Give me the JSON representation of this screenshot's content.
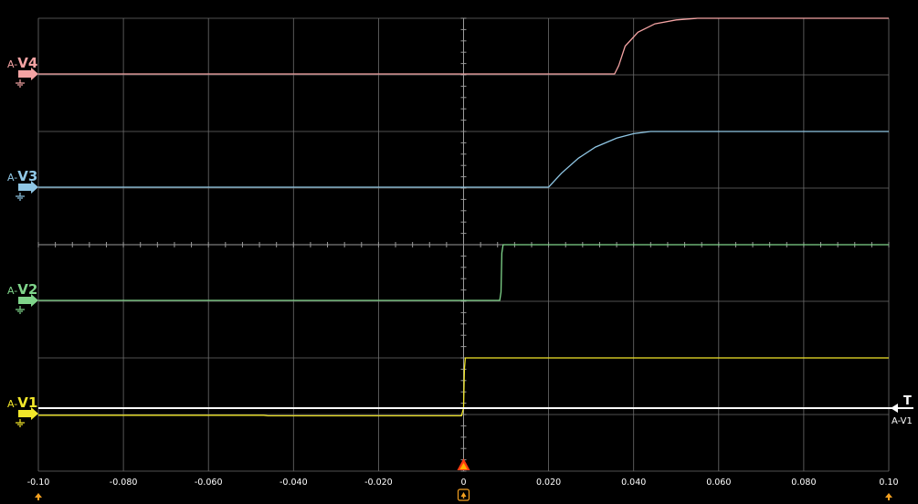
{
  "chart_data": {
    "type": "line",
    "xlim": [
      -0.1,
      0.1
    ],
    "x_ticks": [
      {
        "v": -0.1,
        "label": "-0.10"
      },
      {
        "v": -0.08,
        "label": "-0.080"
      },
      {
        "v": -0.06,
        "label": "-0.060"
      },
      {
        "v": -0.04,
        "label": "-0.040"
      },
      {
        "v": -0.02,
        "label": "-0.020"
      },
      {
        "v": 0,
        "label": "0"
      },
      {
        "v": 0.02,
        "label": "0.020"
      },
      {
        "v": 0.04,
        "label": "0.040"
      },
      {
        "v": 0.06,
        "label": "0.060"
      },
      {
        "v": 0.08,
        "label": "0.080"
      },
      {
        "v": 0.1,
        "label": "0.10"
      }
    ],
    "grid": true,
    "channels": [
      {
        "prefix": "A-",
        "name": "V4",
        "color": "#f4a3a3",
        "points": [
          [
            -0.1,
            0
          ],
          [
            0.012,
            0
          ],
          [
            0.0355,
            0
          ],
          [
            0.0365,
            0.15
          ],
          [
            0.038,
            0.5
          ],
          [
            0.041,
            0.75
          ],
          [
            0.045,
            0.9
          ],
          [
            0.05,
            0.97
          ],
          [
            0.055,
            1
          ],
          [
            0.1,
            1
          ]
        ]
      },
      {
        "prefix": "A-",
        "name": "V3",
        "color": "#8fc6e4",
        "points": [
          [
            -0.1,
            0
          ],
          [
            0.02,
            0
          ],
          [
            0.023,
            0.25
          ],
          [
            0.027,
            0.52
          ],
          [
            0.031,
            0.72
          ],
          [
            0.036,
            0.88
          ],
          [
            0.04,
            0.96
          ],
          [
            0.044,
            1
          ],
          [
            0.1,
            1
          ]
        ]
      },
      {
        "prefix": "A-",
        "name": "V2",
        "color": "#7fd48a",
        "points": [
          [
            -0.1,
            0
          ],
          [
            0.0085,
            0
          ],
          [
            0.0088,
            0.15
          ],
          [
            0.009,
            0.85
          ],
          [
            0.0093,
            1
          ],
          [
            0.1,
            1
          ]
        ]
      },
      {
        "prefix": "A-",
        "name": "V1",
        "color": "#f2e72a",
        "points": [
          [
            -0.1,
            -0.03
          ],
          [
            -0.047,
            -0.03
          ],
          [
            -0.046,
            -0.04
          ],
          [
            -0.03,
            -0.04
          ],
          [
            -0.0005,
            -0.04
          ],
          [
            0,
            0.1
          ],
          [
            0.0002,
            0.8
          ],
          [
            0.0004,
            1
          ],
          [
            0.1,
            1
          ]
        ]
      }
    ],
    "trigger": {
      "label": "T",
      "source": "A-V1",
      "color": "#ffffff"
    },
    "cursor_color": "#f4a020",
    "trigger_marker_color": "#ff3d10"
  }
}
